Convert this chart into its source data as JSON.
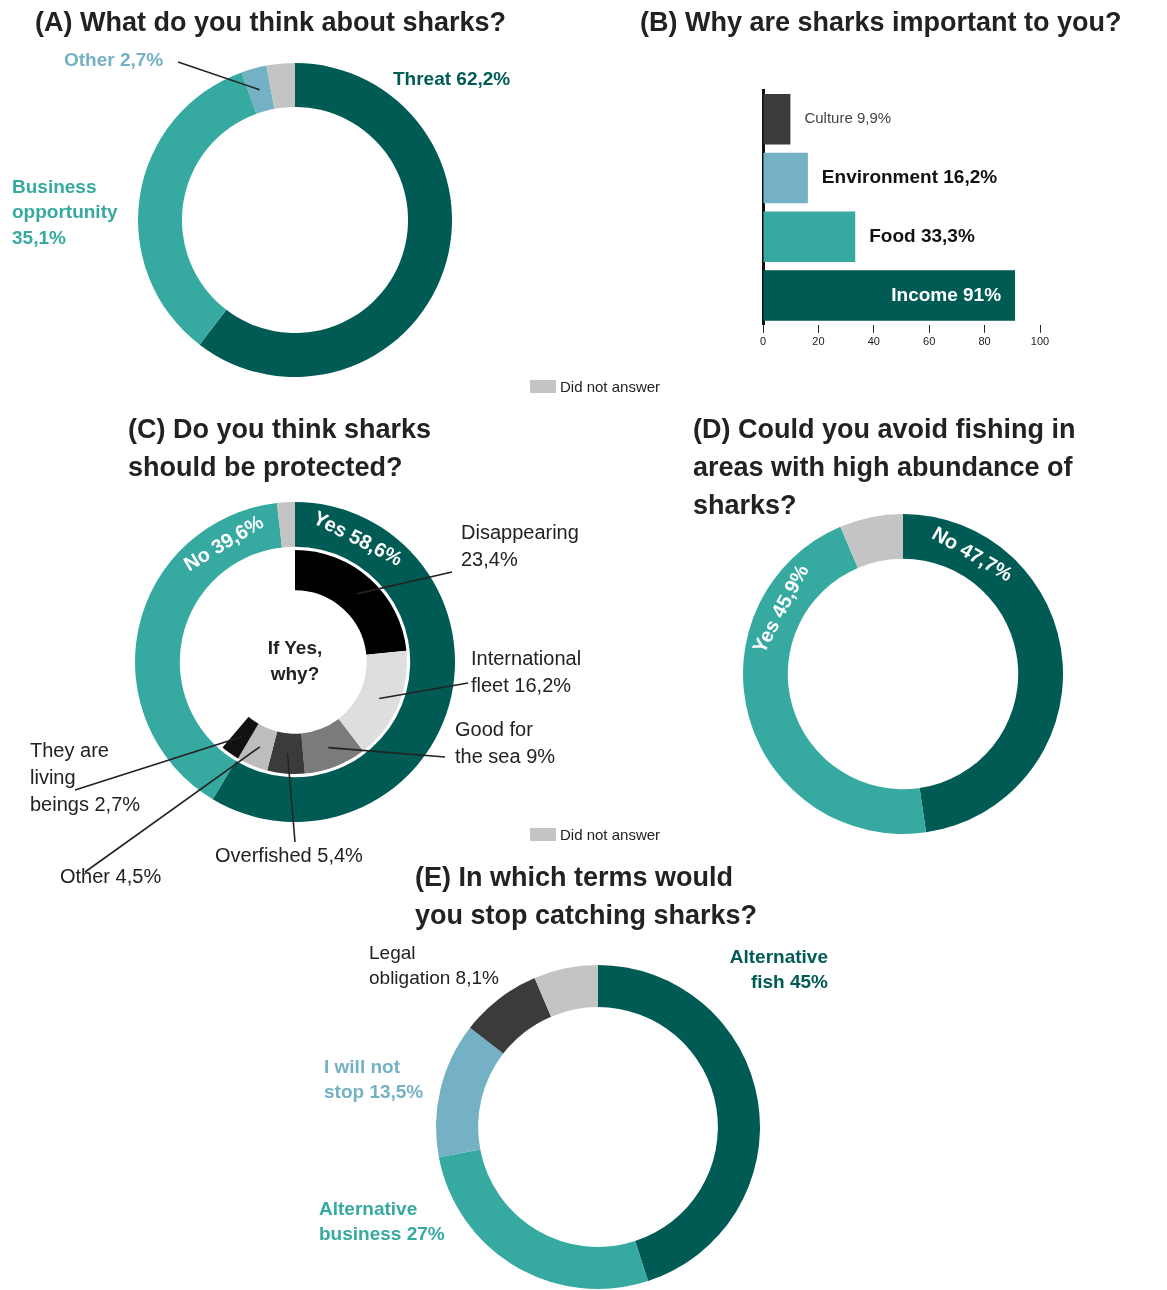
{
  "chart_data": [
    {
      "type": "donut",
      "title": "(A) What do you think about sharks?",
      "categories": [
        "Threat",
        "Business opportunity",
        "Other",
        "Did not answer"
      ],
      "values": [
        62.2,
        35.1,
        2.7,
        3
      ],
      "colors": [
        "#005b55",
        "#36aaa1",
        "#74b1c4",
        "#c4c4c4"
      ],
      "value_labels": [
        "62,2%",
        "35,1%",
        "2,7%",
        null
      ],
      "legend": "bottom right"
    },
    {
      "type": "bar",
      "orientation": "horizontal",
      "title": "(B) Why are sharks important to you?",
      "categories": [
        "Culture",
        "Environment",
        "Food",
        "Income"
      ],
      "values": [
        9.9,
        16.2,
        33.3,
        91
      ],
      "colors": [
        "#3b3b3b",
        "#74b1c4",
        "#36aaa1",
        "#005b55"
      ],
      "value_labels": [
        "9,9%",
        "16,2%",
        "33,3%",
        "91%"
      ],
      "xlim": [
        0,
        100
      ],
      "xticks": [
        0,
        20,
        40,
        60,
        80,
        100
      ],
      "tick_labels": "x",
      "grid": false
    },
    {
      "type": "donut",
      "title": "(C) Do you think sharks should be protected?",
      "categories": [
        "Yes",
        "No",
        "Did not answer"
      ],
      "values": [
        58.6,
        39.6,
        1.8
      ],
      "colors": [
        "#005b55",
        "#36aaa1",
        "#c4c4c4"
      ],
      "value_labels": [
        "58,6%",
        "39,6%",
        null
      ],
      "legend": "bottom right"
    },
    {
      "type": "donut",
      "title": "If Yes, why?",
      "categories": [
        "Disappearing",
        "International fleet",
        "Good for the sea",
        "Overfished",
        "Other",
        "They are living beings"
      ],
      "values": [
        23.4,
        16.2,
        9,
        5.4,
        4.5,
        2.7
      ],
      "colors": [
        "#000000",
        "#dedede",
        "#7b7b7b",
        "#3b3b3b",
        "#bdbdbd",
        "#111111"
      ],
      "value_labels": [
        "23,4%",
        "16,2%",
        "9%",
        "5,4%",
        "4,5%",
        "2,7%"
      ]
    },
    {
      "type": "donut",
      "title": "(D) Could you avoid fishing in areas with high abundance of  sharks?",
      "categories": [
        "No",
        "Yes",
        null
      ],
      "values": [
        47.7,
        45.9,
        6.4
      ],
      "colors": [
        "#005b55",
        "#36aaa1",
        "#c4c4c4"
      ],
      "value_labels": [
        "47,7%",
        "45,9%",
        null
      ]
    },
    {
      "type": "donut",
      "title": "(E) In which terms would you stop catching sharks?",
      "categories": [
        "Alternative fish",
        "Alternative business",
        "I will not stop",
        "Legal obligation",
        null
      ],
      "values": [
        45,
        27,
        13.5,
        8.1,
        6.4
      ],
      "colors": [
        "#005b55",
        "#36aaa1",
        "#74b1c4",
        "#3b3b3b",
        "#c4c4c4"
      ],
      "value_labels": [
        "45%",
        "27%",
        "13,5%",
        "8,1%",
        null
      ]
    }
  ]
}
